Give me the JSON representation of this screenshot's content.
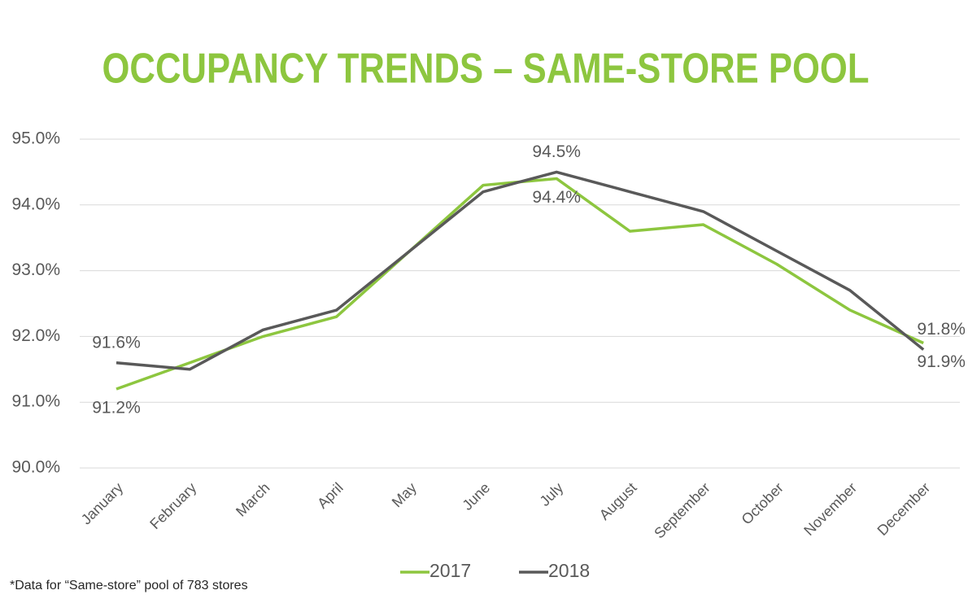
{
  "chart_data": {
    "type": "line",
    "title": "OCCUPANCY TRENDS – SAME-STORE POOL",
    "categories": [
      "January",
      "February",
      "March",
      "April",
      "May",
      "June",
      "July",
      "August",
      "September",
      "October",
      "November",
      "December"
    ],
    "series": [
      {
        "name": "2017",
        "color": "#8dc63f",
        "values": [
          91.2,
          91.6,
          92.0,
          92.3,
          93.3,
          94.3,
          94.4,
          93.6,
          93.7,
          93.1,
          92.4,
          91.9
        ],
        "value_labels": [
          "91.2%",
          null,
          null,
          null,
          null,
          null,
          "94.4%",
          null,
          null,
          null,
          null,
          "91.9%"
        ]
      },
      {
        "name": "2018",
        "color": "#595959",
        "values": [
          91.6,
          91.5,
          92.1,
          92.4,
          93.3,
          94.2,
          94.5,
          94.2,
          93.9,
          93.3,
          92.7,
          91.8
        ],
        "value_labels": [
          "91.6%",
          null,
          null,
          null,
          null,
          null,
          "94.5%",
          null,
          null,
          null,
          null,
          "91.8%"
        ]
      }
    ],
    "ylim": [
      90,
      95
    ],
    "yticks": [
      {
        "value": 90,
        "label": "90.0%"
      },
      {
        "value": 91,
        "label": "91.0%"
      },
      {
        "value": 92,
        "label": "92.0%"
      },
      {
        "value": 93,
        "label": "93.0%"
      },
      {
        "value": 94,
        "label": "94.0%"
      },
      {
        "value": 95,
        "label": "95.0%"
      }
    ],
    "grid": true,
    "legend": "bottom",
    "footnote": "*Data for “Same-store” pool of 783 stores"
  }
}
